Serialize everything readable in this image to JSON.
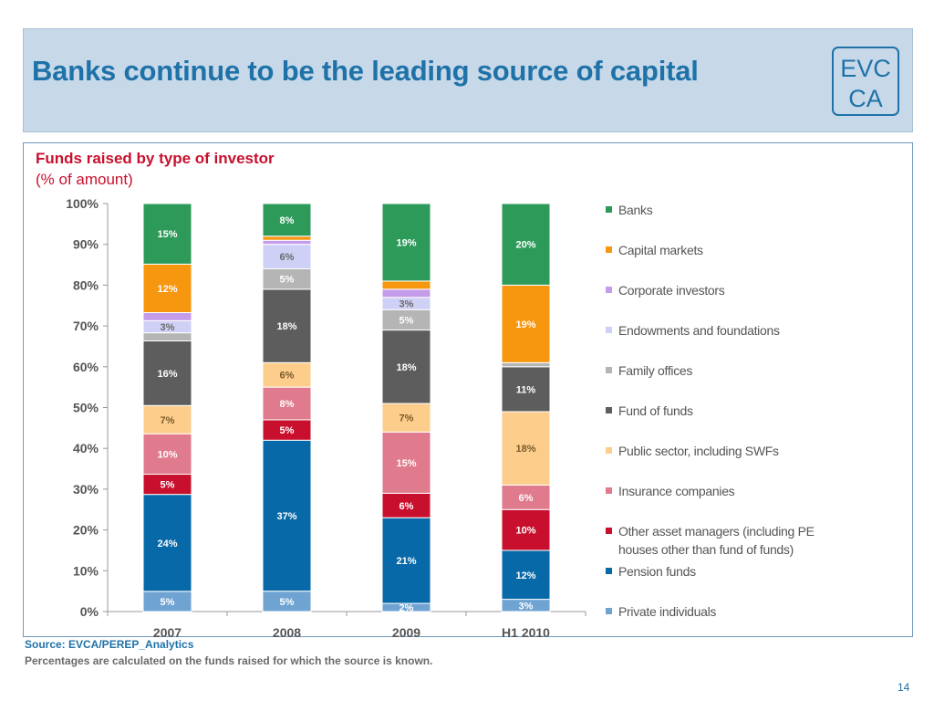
{
  "slide": {
    "title": "Banks continue to be the leading source of capital",
    "logo_text_top": "EVC",
    "logo_text_bottom": "CA",
    "page_number": "14"
  },
  "chart_header": {
    "title": "Funds raised by type of investor",
    "unit": "(% of amount)"
  },
  "footer": {
    "source": "Source: EVCA/PEREP_Analytics",
    "note": "Percentages are calculated on the funds raised for which the source is known."
  },
  "colors": {
    "title_blue": "#1f72a8",
    "accent_red": "#c8102e"
  },
  "chart_data": {
    "type": "bar",
    "stacked": true,
    "categories": [
      "2007",
      "2008",
      "2009",
      "H1 2010"
    ],
    "ylim": [
      0,
      100
    ],
    "yticks": [
      "0%",
      "10%",
      "20%",
      "30%",
      "40%",
      "50%",
      "60%",
      "70%",
      "80%",
      "90%",
      "100%"
    ],
    "legend_position": "right",
    "series": [
      {
        "name": "Private individuals",
        "color": "#6fa3d2",
        "values": [
          5,
          5,
          2,
          3
        ],
        "labels": [
          "5%",
          "5%",
          "2%",
          "3%"
        ],
        "label_color": "#ffffff"
      },
      {
        "name": "Pension funds",
        "color": "#0869a8",
        "values": [
          24,
          37,
          21,
          12
        ],
        "labels": [
          "24%",
          "37%",
          "21%",
          "12%"
        ],
        "label_color": "#ffffff"
      },
      {
        "name": "Other asset managers (including PE houses other than fund of funds)",
        "color": "#c8102e",
        "values": [
          5,
          5,
          6,
          10
        ],
        "labels": [
          "5%",
          "5%",
          "6%",
          "10%"
        ],
        "label_color": "#ffffff"
      },
      {
        "name": "Insurance companies",
        "color": "#e07a8d",
        "values": [
          10,
          8,
          15,
          6
        ],
        "labels": [
          "10%",
          "8%",
          "15%",
          "6%"
        ],
        "label_color": "#ffffff"
      },
      {
        "name": "Public sector, including SWFs",
        "color": "#fdcd8c",
        "values": [
          7,
          6,
          7,
          18
        ],
        "labels": [
          "7%",
          "6%",
          "7%",
          "18%"
        ],
        "label_color": "#7a5a2a"
      },
      {
        "name": "Fund of funds",
        "color": "#5d5d5d",
        "values": [
          16,
          18,
          18,
          11
        ],
        "labels": [
          "16%",
          "18%",
          "18%",
          "11%"
        ],
        "label_color": "#ffffff"
      },
      {
        "name": "Family offices",
        "color": "#b5b5b5",
        "values": [
          2,
          5,
          5,
          1
        ],
        "labels": [
          "",
          "5%",
          "5%",
          ""
        ],
        "label_color": "#ffffff"
      },
      {
        "name": "Endowments and foundations",
        "color": "#cfd0f5",
        "values": [
          3,
          6,
          3,
          0
        ],
        "labels": [
          "3%",
          "6%",
          "3%",
          ""
        ],
        "label_color": "#6a6a6a"
      },
      {
        "name": "Corporate investors",
        "color": "#c59cea",
        "values": [
          2,
          1,
          2,
          0
        ],
        "labels": [
          "",
          "",
          "",
          ""
        ],
        "label_color": "#ffffff"
      },
      {
        "name": "Capital markets",
        "color": "#f7960f",
        "values": [
          12,
          1,
          2,
          19
        ],
        "labels": [
          "12%",
          "",
          "",
          "19%"
        ],
        "label_color": "#ffffff"
      },
      {
        "name": "Banks",
        "color": "#2e9a5a",
        "values": [
          15,
          8,
          19,
          20
        ],
        "labels": [
          "15%",
          "8%",
          "19%",
          "20%"
        ],
        "label_color": "#ffffff"
      }
    ]
  }
}
